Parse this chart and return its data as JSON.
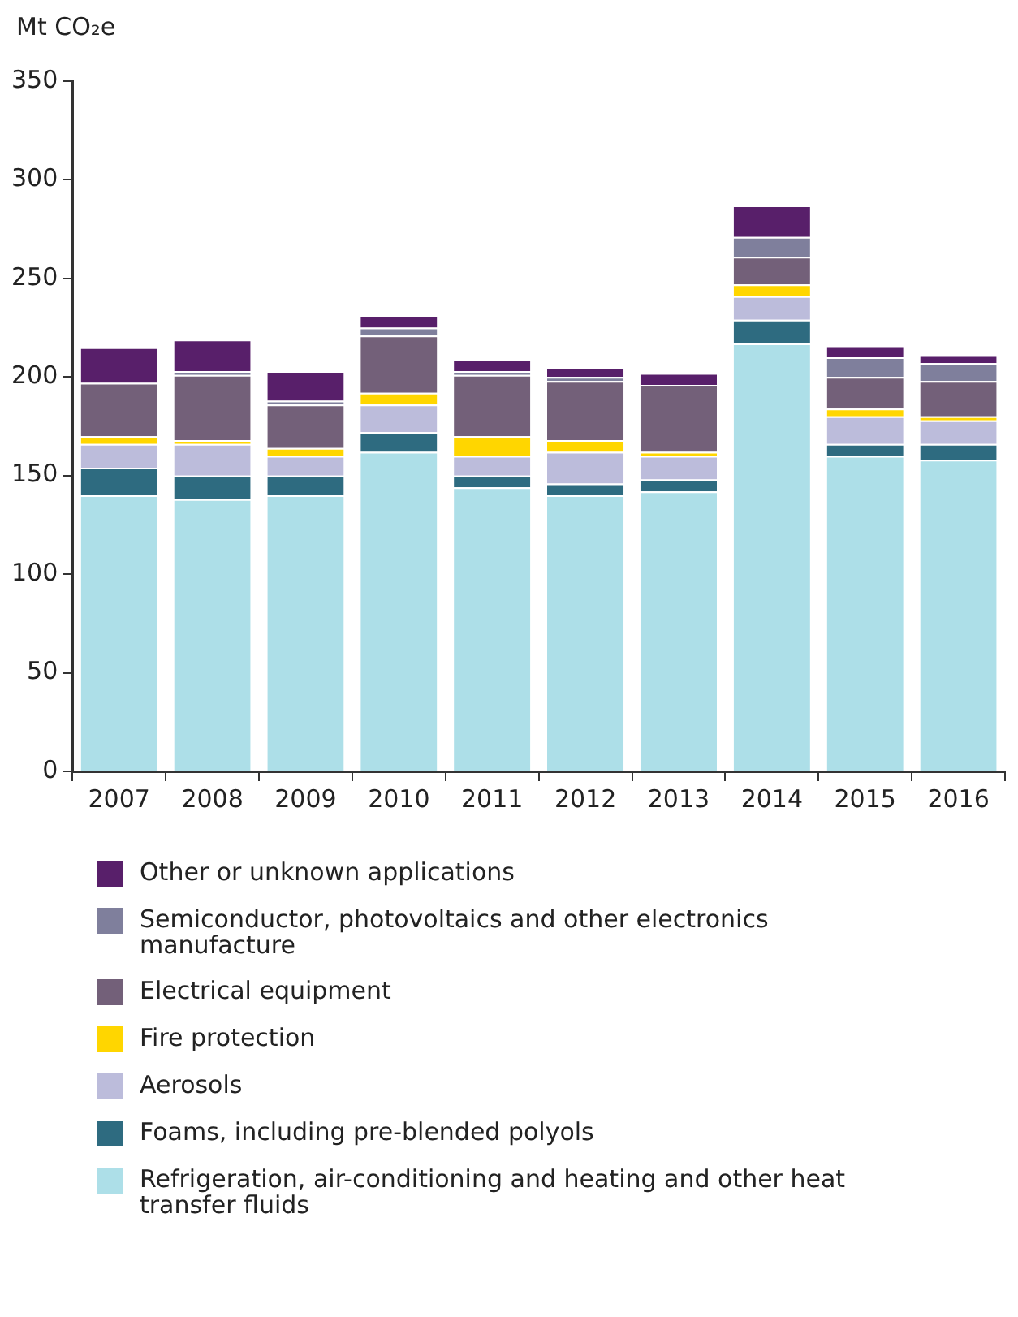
{
  "chart_data": {
    "type": "bar",
    "stacked": true,
    "ylabel": "Mt CO₂e",
    "categories": [
      "2007",
      "2008",
      "2009",
      "2010",
      "2011",
      "2012",
      "2013",
      "2014",
      "2015",
      "2016"
    ],
    "ylim": [
      0,
      350
    ],
    "yticks": [
      0,
      50,
      100,
      150,
      200,
      250,
      300,
      350
    ],
    "grid": false,
    "legend": "bottom",
    "series": [
      {
        "name": "Refrigeration, air-conditioning and heating and other heat transfer fluids",
        "color": "#addfe8",
        "values": [
          140,
          138,
          140,
          162,
          144,
          140,
          142,
          217,
          160,
          158
        ]
      },
      {
        "name": "Foams, including pre-blended polyols",
        "color": "#2e6b80",
        "values": [
          14,
          12,
          10,
          10,
          6,
          6,
          6,
          12,
          6,
          8
        ]
      },
      {
        "name": "Aerosols",
        "color": "#bcbcdb",
        "values": [
          12,
          16,
          10,
          14,
          10,
          16,
          12,
          12,
          14,
          12
        ]
      },
      {
        "name": "Fire protection",
        "color": "#ffd600",
        "values": [
          4,
          2,
          4,
          6,
          10,
          6,
          2,
          6,
          4,
          2
        ]
      },
      {
        "name": "Electrical equipment",
        "color": "#736079",
        "values": [
          27,
          33,
          22,
          29,
          31,
          30,
          34,
          14,
          16,
          18
        ]
      },
      {
        "name": "Semiconductor, photovoltaics and other electronics manufacture",
        "color": "#7f7f9c",
        "values": [
          0,
          2,
          2,
          4,
          2,
          2,
          0,
          10,
          10,
          9
        ]
      },
      {
        "name": "Other or unknown applications",
        "color": "#581f6a",
        "values": [
          18,
          16,
          15,
          6,
          6,
          5,
          6,
          16,
          6,
          4
        ]
      }
    ]
  }
}
